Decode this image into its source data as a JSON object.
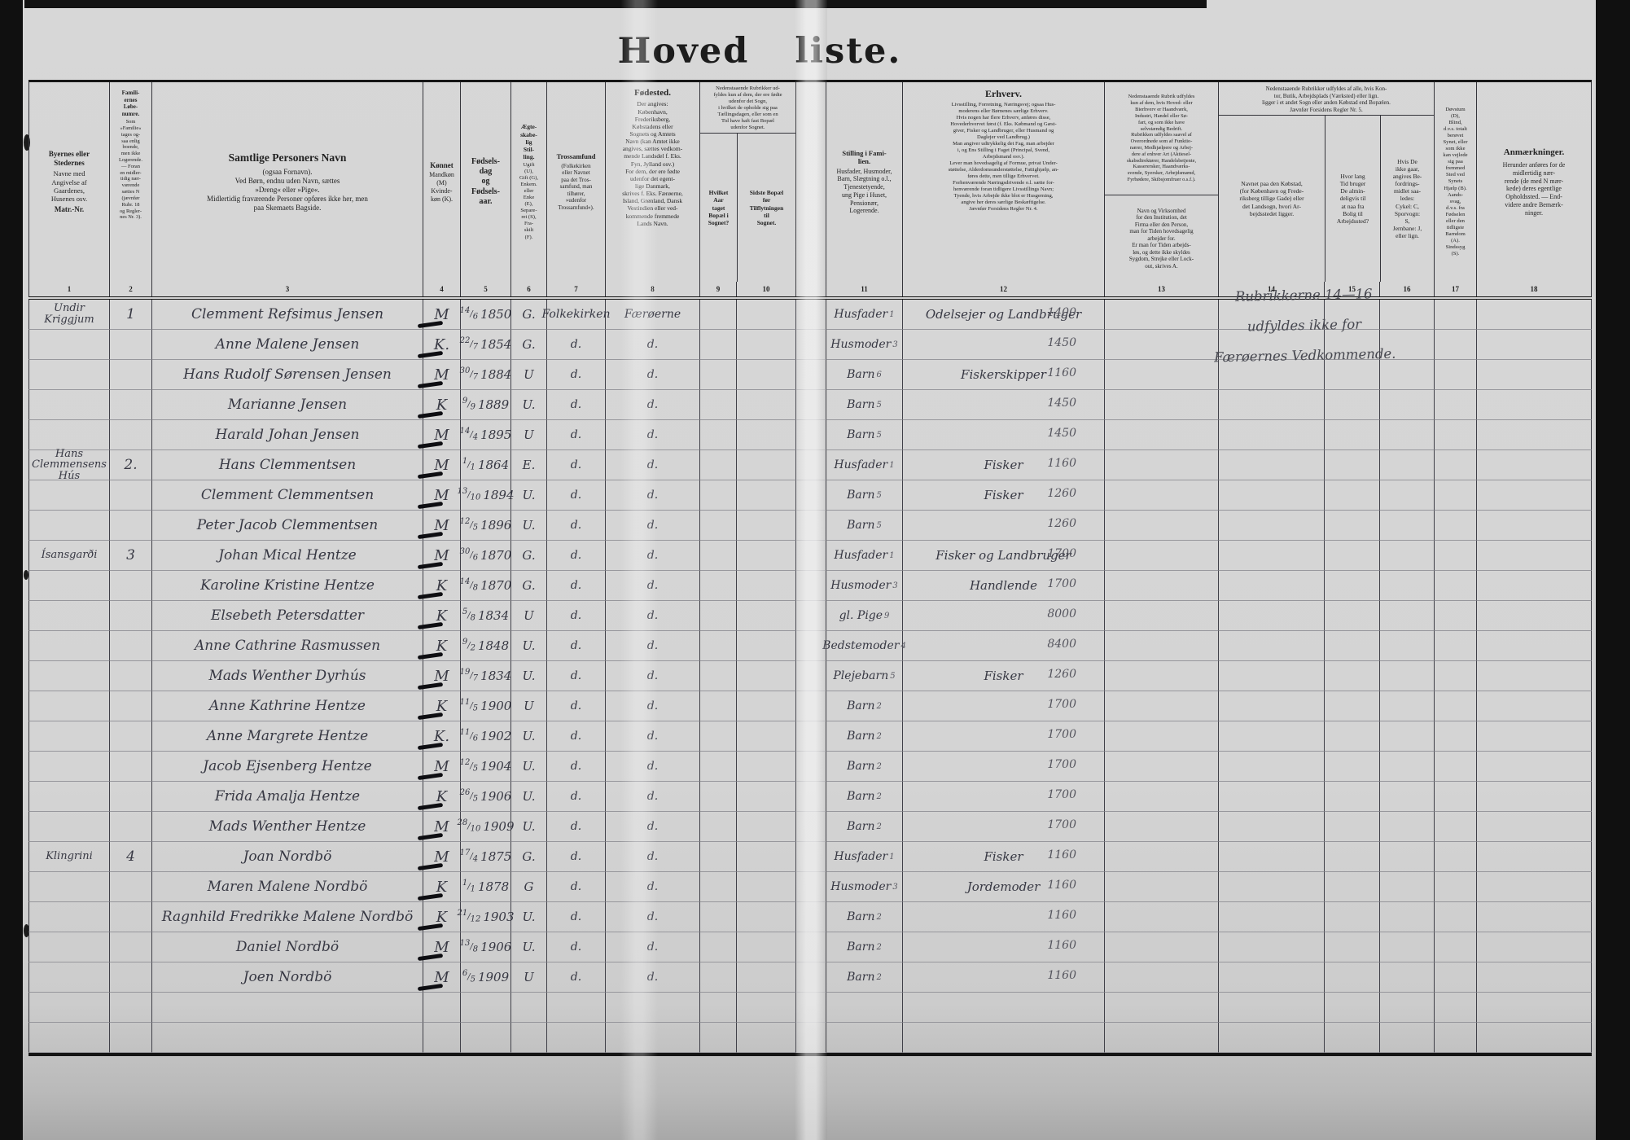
{
  "title": {
    "part1": "Hoved",
    "part2": "liste."
  },
  "pencil_note": {
    "line1": "Rubrikkerne 14—16",
    "line2": "udfyldes ikke for",
    "line3": "Færøernes Vedkommende."
  },
  "header": {
    "c1": {
      "title": "Byernes eller\nStedernes",
      "body": "Navne med\nAngivelse af\nGaardenes,\nHusenes osv.",
      "foot": "Matr.-Nr."
    },
    "c2": {
      "title": "Famili-\nernes\nLøbe-\nnumre.",
      "body": "Som\n»Familie«\ntages og-\nsaa enlig\nboende,\nmen ikke\nLogerende.\n— Foran\nen midler-\ntidig nær-\nværende\nsættes N\n(jævnfør\nRubr. 18\nog Regler-\nnes Nr. 3)."
    },
    "c3": {
      "title": "Samtlige Personers Navn",
      "body": "(ogsaa Fornavn).\nVed Børn, endnu uden Navn, sættes\n»Dreng« eller »Pige«.\nMidlertidig fraværende Personer opføres ikke her, men\npaa Skemaets Bagside."
    },
    "c4": {
      "title": "Kønnet",
      "body": "Mandkøn\n(M)\nKvinde-\nkøn (K)."
    },
    "c5": {
      "title": "Fødsels-\ndag\nog\nFødsels-\naar."
    },
    "c6": {
      "title": "Ægte-\nskabe-\nlig\nStil-\nling.",
      "body": "Ugift\n(U),\nGift (G),\nEnkem.\neller\nEnke\n(E),\nSepare-\nret (S),\nFra-\nskilt\n(F)."
    },
    "c7": {
      "title": "Trossamfund",
      "body": "(Folkekirken\neller Navnet\npaa det Tros-\nsamfund, man\ntilhører,\n»udenfor\nTrossamfund«)."
    },
    "c8": {
      "title": "Fødested.",
      "body": "Der angives:\nKøbenhavn,\nFrederiksberg,\nKøbstadens eller\nSognets og Amtets\nNavn (kan Amtet ikke\nangives, sættes vedkom-\nmende Landsdel f. Eks.\nFyn, Jylland osv.)\nFor dem, der ere fødte\nudenfor det egent-\nlige Danmark,\nskrives f. Eks. Færøerne,\nIsland, Grønland, Dansk\nVestindien eller ved-\nkommende fremmede\nLands Navn."
    },
    "g910": "Nedenstaaende Rubrikker ud-\nfyldes kun af dem, der ere fødte\nudenfor det Sogn,\ni hvilket de opholde sig paa\nTællingsdagen, eller som en\nTid have haft fast Bopæl\nudenfor Sognet.",
    "c9": "Hvilket\nAar\ntaget\nBopæl i\nSognet?",
    "c10": "Sidste Bopæl\nfør\nTilflytningen\ntil\nSognet.",
    "c11": {
      "title": "Stilling i Fami-\nlien.",
      "body": "Husfader, Husmoder,\nBarn, Slægtning o.l.,\nTjenestetyende,\nung Pige i Huset,\nPensionær,\nLogerende."
    },
    "c12": {
      "title": "Erhverv.",
      "body": "Livsstilling, Forretning, Næringsvej; ogsaa Hus-\nmoderens eller Børnenes særlige Erhverv.\nHvis nogen har flere Erhverv, anføres disse,\nHovederhvervet først (f. Eks. Købmand og Gæst-\ngiver, Fisker og Landbruger, eller Husmand og\nDaglejer ved Landbrug.)\nMan angiver udtrykkelig det Fag, man arbejder\ni, og Ens Stilling i Faget (Principal, Svend,\nArbejdsmand osv.).\nLever man hovedsagelig af Formue, privat Under-\nstøttelse, Alderdomsunderstøttelse, Fattighjælp, an-\nføres dette, men tillige Erhvervet.\nForhenværende Næringsdrivende o.l. sætte for-\nhenværende foran tidligere Livsstillings Navn;\nTyende, hvis Arbejde ikke blot er Husgerning,\nangive her deres særlige Beskæftigelse.\nJævnfør Forsidens Regler Nr. 4."
    },
    "c13": {
      "note1": "Nedenstaaende Rubrik udfyldes\nkun af dem, hvis Hoved- eller\nBierhverv er Haandværk,\nIndustri, Handel eller Sø-\nfart, og som ikke have\nselvstændig Bedrift.\nRubrikken udfyldes saavel af\nOverordnede som af Funktio-\nnærer, Medhjælpere og Arbej-\ndere af enhver Art (Aktiesel-\nskabsdirektører, Handelsbetjente,\nKasserersker, Haandværks-\nsvende, Syersker, Arbejdsmænd,\nFyrbødere, Skibsjomfruer o.s.f.).",
      "note2": "Navn og Virksomhed\nfor den Institution, det\nFirma eller den Person,\nman for Tiden hovedsagelig\narbejder for.\nEr man for Tiden arbejds-\nløs, og dette ikke skyldes\nSygdom, Strejke eller Lock-\nout, skrives A."
    },
    "g1416": "Nedenstaaende Rubrikker udfyldes af alle, hvis Kon-\ntor, Butik, Arbejdsplads (Værksted) eller lign.\nligger i et andet Sogn eller anden Købstad end Bopælen.\nJævnfør Forsidens Regler Nr. 5.",
    "c14": "Navnet paa den Købstad,\n(for København og Frede-\nriksberg tillige Gade) eller\ndet Landsogn, hvori Ar-\nbejdsstedet ligger.",
    "c15": "Hvor lang\nTid bruger\nDe almin-\ndeligvis til\nat naa fra\nBolig til\nArbejdssted?",
    "c16": "Hvis De\nikke gaar,\nangives Be-\nfordrings-\nmidlet saa-\nledes:\nCykel: C,\nSporvogn:\nS,\nJernbane: J,\neller lign.",
    "c17": "Døvstum\n(D),\nBlind,\nd.v.s. totalt\nberøvet\nSynet, eller\nsom ikke\nkan vejlede\nsig paa\nfremmed\nSted ved\nSynets\nHjælp (B).\nAands-\nsvag,\nd.v.s. fra\nFødselen\neller den\ntidligste\nBarndom\n(A).\nSindssyg\n(S).",
    "c18": {
      "title": "Anmærkninger.",
      "body": "Herunder anføres for de\nmidlertidig nær-\nrende (de med N mær-\nkede) deres egentlige\nOpholdssted. — End-\nvidere andre Bemærk-\nninger."
    },
    "colnums": [
      "1",
      "2",
      "3",
      "4",
      "5",
      "6",
      "7",
      "8",
      "9",
      "10",
      "11",
      "12",
      "13",
      "14",
      "15",
      "16",
      "17",
      "18"
    ]
  },
  "rows": [
    {
      "place": "Undir Kriggjum",
      "fam": "1",
      "name": "Clemment Refsimus Jensen",
      "sex": "M",
      "bd": "14",
      "bm": "6",
      "by": "1850",
      "marital": "G.",
      "church": "Folkekirken",
      "birthplace": "Færøerne",
      "pos": "Husfader",
      "posn": "1",
      "occ": "Odelsejer og Landbruger",
      "code": "1400"
    },
    {
      "name": "Anne Malene Jensen",
      "sex": "K.",
      "bd": "22",
      "bm": "7",
      "by": "1854",
      "marital": "G.",
      "church": "d.",
      "birthplace": "d.",
      "pos": "Husmoder",
      "posn": "3",
      "code": "1450"
    },
    {
      "name": "Hans Rudolf Sørensen Jensen",
      "sex": "M",
      "bd": "30",
      "bm": "7",
      "by": "1884",
      "marital": "U",
      "church": "d.",
      "birthplace": "d.",
      "pos": "Barn",
      "posn": "6",
      "occ": "Fiskerskipper",
      "code": "1160"
    },
    {
      "name": "Marianne Jensen",
      "sex": "K",
      "bd": "9",
      "bm": "9",
      "by": "1889",
      "marital": "U.",
      "church": "d.",
      "birthplace": "d.",
      "pos": "Barn",
      "posn": "5",
      "code": "1450"
    },
    {
      "name": "Harald Johan Jensen",
      "sex": "M",
      "bd": "14",
      "bm": "4",
      "by": "1895",
      "marital": "U",
      "church": "d.",
      "birthplace": "d.",
      "pos": "Barn",
      "posn": "5",
      "code": "1450"
    },
    {
      "place": "Hans Clemmensens",
      "place2": "Hús",
      "fam": "2.",
      "name": "Hans Clemmentsen",
      "sex": "M",
      "bd": "1",
      "bm": "1",
      "by": "1864",
      "marital": "E.",
      "church": "d.",
      "birthplace": "d.",
      "pos": "Husfader",
      "posn": "1",
      "occ": "Fisker",
      "code": "1160"
    },
    {
      "name": "Clemment Clemmentsen",
      "sex": "M",
      "bd": "13",
      "bm": "10",
      "by": "1894",
      "marital": "U.",
      "church": "d.",
      "birthplace": "d.",
      "pos": "Barn",
      "posn": "5",
      "occ": "Fisker",
      "code": "1260"
    },
    {
      "name": "Peter Jacob Clemmentsen",
      "sex": "M",
      "bd": "12",
      "bm": "5",
      "by": "1896",
      "marital": "U.",
      "church": "d.",
      "birthplace": "d.",
      "pos": "Barn",
      "posn": "5",
      "code": "1260"
    },
    {
      "place": "Ísansgarði",
      "fam": "3",
      "name": "Johan Mical Hentze",
      "sex": "M",
      "bd": "30",
      "bm": "6",
      "by": "1870",
      "marital": "G.",
      "church": "d.",
      "birthplace": "d.",
      "pos": "Husfader",
      "posn": "1",
      "occ": "Fisker og Landbruger",
      "code": "1700"
    },
    {
      "name": "Karoline Kristine Hentze",
      "sex": "K",
      "bd": "14",
      "bm": "8",
      "by": "1870",
      "marital": "G.",
      "church": "d.",
      "birthplace": "d.",
      "pos": "Husmoder",
      "posn": "3",
      "occ": "Handlende",
      "code": "1700"
    },
    {
      "name": "Elsebeth Petersdatter",
      "sex": "K",
      "bd": "5",
      "bm": "8",
      "by": "1834",
      "marital": "U",
      "church": "d.",
      "birthplace": "d.",
      "pos": "gl. Pige",
      "posn": "9",
      "code": "8000"
    },
    {
      "name": "Anne Cathrine Rasmussen",
      "sex": "K",
      "bd": "9",
      "bm": "2",
      "by": "1848",
      "marital": "U.",
      "church": "d.",
      "birthplace": "d.",
      "pos": "Bedstemoder",
      "posn": "4",
      "code": "8400"
    },
    {
      "name": "Mads Wenther Dyrhús",
      "sex": "M",
      "bd": "19",
      "bm": "7",
      "by": "1834",
      "marital": "U.",
      "church": "d.",
      "birthplace": "d.",
      "pos": "Plejebarn",
      "posn": "5",
      "occ": "Fisker",
      "code": "1260"
    },
    {
      "name": "Anne Kathrine Hentze",
      "sex": "K",
      "bd": "11",
      "bm": "5",
      "by": "1900",
      "marital": "U",
      "church": "d.",
      "birthplace": "d.",
      "pos": "Barn",
      "posn": "2",
      "code": "1700"
    },
    {
      "name": "Anne Margrete Hentze",
      "sex": "K.",
      "bd": "11",
      "bm": "6",
      "by": "1902",
      "marital": "U.",
      "church": "d.",
      "birthplace": "d.",
      "pos": "Barn",
      "posn": "2",
      "code": "1700"
    },
    {
      "name": "Jacob Ejsenberg Hentze",
      "sex": "M",
      "bd": "12",
      "bm": "5",
      "by": "1904",
      "marital": "U.",
      "church": "d.",
      "birthplace": "d.",
      "pos": "Barn",
      "posn": "2",
      "code": "1700"
    },
    {
      "name": "Frida Amalja Hentze",
      "sex": "K",
      "bd": "26",
      "bm": "5",
      "by": "1906",
      "marital": "U.",
      "church": "d.",
      "birthplace": "d.",
      "pos": "Barn",
      "posn": "2",
      "code": "1700"
    },
    {
      "name": "Mads Wenther Hentze",
      "sex": "M",
      "bd": "28",
      "bm": "10",
      "by": "1909",
      "marital": "U.",
      "church": "d.",
      "birthplace": "d.",
      "pos": "Barn",
      "posn": "2",
      "code": "1700"
    },
    {
      "place": "Klingrini",
      "fam": "4",
      "name": "Joan Nordbö",
      "sex": "M",
      "bd": "17",
      "bm": "4",
      "by": "1875",
      "marital": "G.",
      "church": "d.",
      "birthplace": "d.",
      "pos": "Husfader",
      "posn": "1",
      "occ": "Fisker",
      "code": "1160"
    },
    {
      "name": "Maren Malene Nordbö",
      "sex": "K",
      "bd": "1",
      "bm": "1",
      "by": "1878",
      "marital": "G",
      "church": "d.",
      "birthplace": "d.",
      "pos": "Husmoder",
      "posn": "3",
      "occ": "Jordemoder",
      "code": "1160"
    },
    {
      "name": "Ragnhild Fredrikke Malene Nordbö",
      "sex": "K",
      "bd": "21",
      "bm": "12",
      "by": "1903",
      "marital": "U.",
      "church": "d.",
      "birthplace": "d.",
      "pos": "Barn",
      "posn": "2",
      "code": "1160"
    },
    {
      "name": "Daniel Nordbö",
      "sex": "M",
      "bd": "13",
      "bm": "8",
      "by": "1906",
      "marital": "U.",
      "church": "d.",
      "birthplace": "d.",
      "pos": "Barn",
      "posn": "2",
      "code": "1160"
    },
    {
      "name": "Joen Nordbö",
      "sex": "M",
      "bd": "6",
      "bm": "5",
      "by": "1909",
      "marital": "U",
      "church": "d.",
      "birthplace": "d.",
      "pos": "Barn",
      "posn": "2",
      "code": "1160"
    },
    {},
    {}
  ]
}
